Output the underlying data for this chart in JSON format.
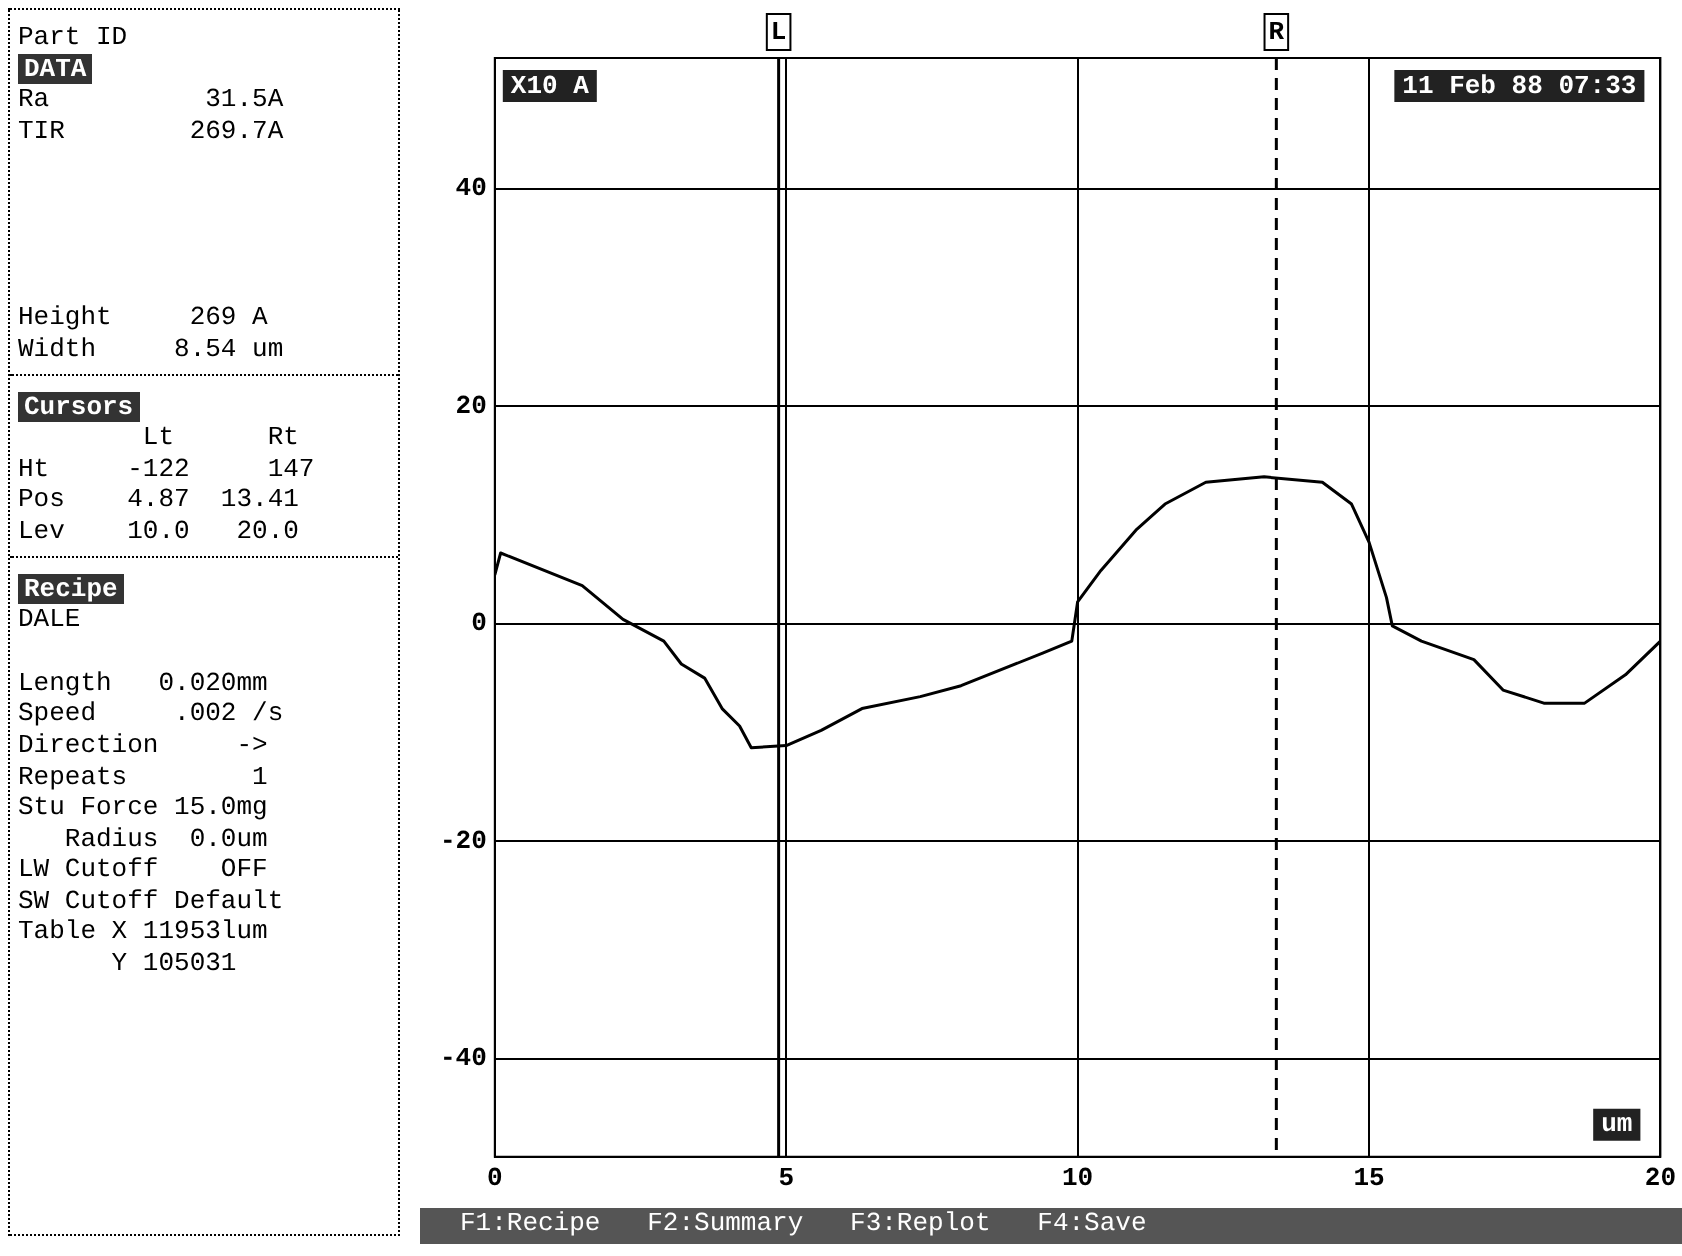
{
  "chart_data": {
    "type": "line",
    "subtitle": "11 Feb 88 07:33",
    "xlabel": "um",
    "ylabel": "X10 A",
    "x": [
      0,
      0.1,
      1.5,
      2.2,
      2.9,
      3.2,
      3.6,
      3.9,
      4.2,
      4.4,
      5.0,
      5.6,
      6.3,
      7.3,
      8.0,
      9.4,
      9.9,
      10.0,
      10.4,
      11.0,
      11.5,
      12.2,
      13.2,
      14.2,
      14.7,
      15.0,
      15.3,
      15.4,
      15.9,
      16.8,
      17.3,
      18.0,
      18.7,
      19.4,
      20.0
    ],
    "series": [
      {
        "color": "#000000",
        "values": [
          4.5,
          6.5,
          3.5,
          0.4,
          -1.6,
          -3.7,
          -5,
          -7.8,
          -9.4,
          -11.4,
          -11.2,
          -9.8,
          -7.8,
          -6.7,
          -5.7,
          -2.7,
          -1.6,
          2,
          4.9,
          8.6,
          11,
          13,
          13.5,
          13,
          11,
          7.5,
          2.4,
          -0.2,
          -1.6,
          -3.3,
          -6.1,
          -7.3,
          -7.3,
          -4.7,
          -1.6
        ]
      }
    ],
    "xlim": [
      0,
      20
    ],
    "xticks": [
      0,
      5,
      10,
      15,
      20
    ],
    "ylim": [
      -49,
      52
    ],
    "yticks": [
      -40,
      -20,
      0,
      20,
      40
    ],
    "grid": true,
    "marker": "none",
    "line_style": "solid",
    "ref_lines": [
      {
        "axis": "x",
        "value": 4.87,
        "label": "L",
        "line_style": "solid"
      },
      {
        "axis": "x",
        "value": 13.41,
        "label": "R",
        "line_style": "dashed"
      }
    ],
    "annotations": [
      "Part ID",
      "DATA",
      "Ra          31.5A",
      "TIR        269.7A",
      "Height     269 A",
      "Width     8.54 um",
      "Cursors",
      "        Lt      Rt",
      "Ht     -122     147",
      "Pos    4.87  13.41",
      "Lev    10.0   20.0",
      "Recipe",
      "DALE",
      "Length   0.020mm",
      "Speed     .002 /s",
      "Direction     ->",
      "Repeats        1",
      "Stu Force 15.0mg",
      "   Radius  0.0um",
      "LW Cutoff    OFF",
      "SW Cutoff Default",
      "Table X 11953lum",
      "      Y 105031",
      "F1:Recipe   F2:Summary   F3:Replot   F4:Save"
    ]
  }
}
